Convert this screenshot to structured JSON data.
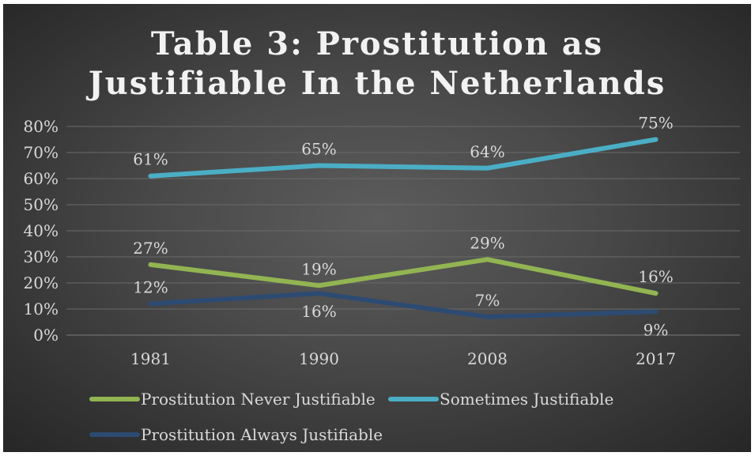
{
  "chart_data": {
    "type": "line",
    "title_lines": [
      "Table 3: Prostitution as",
      "Justifiable In the Netherlands"
    ],
    "categories": [
      "1981",
      "1990",
      "2008",
      "2017"
    ],
    "ylim": [
      0,
      80
    ],
    "yticks": [
      "0%",
      "10%",
      "20%",
      "30%",
      "40%",
      "50%",
      "60%",
      "70%",
      "80%"
    ],
    "grid": true,
    "legend_position": "bottom",
    "series": [
      {
        "name": "Prostitution Never Justifiable",
        "color": "#92b452",
        "values": [
          27,
          19,
          29,
          16
        ],
        "labels": [
          "27%",
          "19%",
          "29%",
          "16%"
        ]
      },
      {
        "name": "Sometimes Justifiable",
        "color": "#4aaec5",
        "values": [
          61,
          65,
          64,
          75
        ],
        "labels": [
          "61%",
          "65%",
          "64%",
          "75%"
        ]
      },
      {
        "name": "Prostitution Always Justifiable",
        "color": "#2d4b72",
        "values": [
          12,
          16,
          7,
          9
        ],
        "labels": [
          "12%",
          "16%",
          "7%",
          "9%"
        ]
      }
    ]
  }
}
